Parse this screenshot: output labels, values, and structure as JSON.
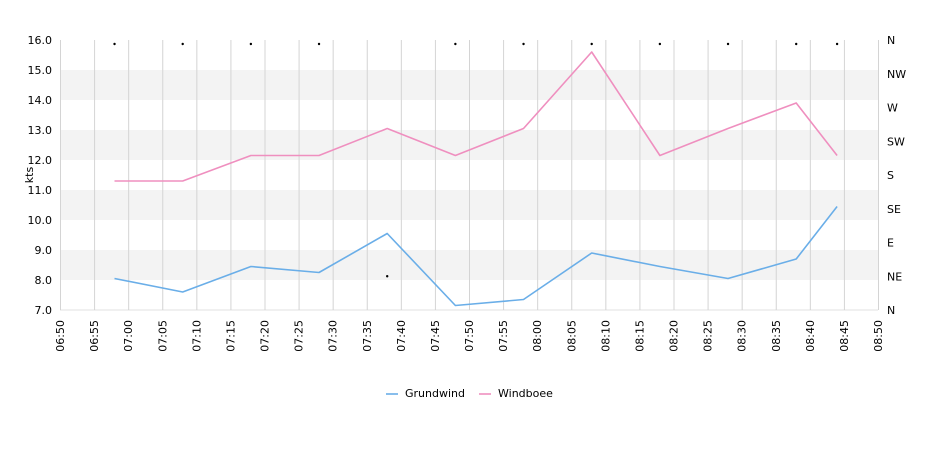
{
  "chart_data": {
    "type": "line",
    "ylabel": "kts",
    "ylim": [
      7.0,
      16.0
    ],
    "y_ticks": [
      "7.0",
      "8.0",
      "9.0",
      "10.0",
      "11.0",
      "12.0",
      "13.0",
      "14.0",
      "15.0",
      "16.0"
    ],
    "x_range": [
      "06:50",
      "08:50"
    ],
    "x_ticks": [
      "06:50",
      "06:55",
      "07:00",
      "07:05",
      "07:10",
      "07:15",
      "07:20",
      "07:25",
      "07:30",
      "07:35",
      "07:40",
      "07:45",
      "07:50",
      "07:55",
      "08:00",
      "08:05",
      "08:10",
      "08:15",
      "08:20",
      "08:25",
      "08:30",
      "08:35",
      "08:40",
      "08:45",
      "08:50"
    ],
    "direction_ticks": [
      "N",
      "NE",
      "E",
      "SE",
      "S",
      "SW",
      "W",
      "NW",
      "N"
    ],
    "grid": true,
    "legend_position": "bottom",
    "series": [
      {
        "name": "Grundwind",
        "color": "#6aaee8",
        "points": [
          [
            "06:58",
            8.05
          ],
          [
            "07:08",
            7.6
          ],
          [
            "07:18",
            8.45
          ],
          [
            "07:28",
            8.25
          ],
          [
            "07:38",
            9.55
          ],
          [
            "07:48",
            7.15
          ],
          [
            "07:58",
            7.35
          ],
          [
            "08:08",
            8.9
          ],
          [
            "08:18",
            8.45
          ],
          [
            "08:28",
            8.05
          ],
          [
            "08:38",
            8.7
          ],
          [
            "08:44",
            10.45
          ]
        ]
      },
      {
        "name": "Windboee",
        "color": "#ef8fbf",
        "points": [
          [
            "06:58",
            11.3
          ],
          [
            "07:08",
            11.3
          ],
          [
            "07:18",
            12.15
          ],
          [
            "07:28",
            12.15
          ],
          [
            "07:38",
            13.05
          ],
          [
            "07:48",
            12.15
          ],
          [
            "07:58",
            13.05
          ],
          [
            "08:08",
            15.6
          ],
          [
            "08:18",
            12.15
          ],
          [
            "08:28",
            13.05
          ],
          [
            "08:38",
            13.9
          ],
          [
            "08:44",
            12.15
          ]
        ]
      }
    ],
    "direction_points": [
      [
        "06:58",
        "N"
      ],
      [
        "07:08",
        "N"
      ],
      [
        "07:18",
        "N"
      ],
      [
        "07:28",
        "N"
      ],
      [
        "07:38",
        "NE"
      ],
      [
        "07:48",
        "N"
      ],
      [
        "07:58",
        "N"
      ],
      [
        "08:08",
        "N"
      ],
      [
        "08:18",
        "N"
      ],
      [
        "08:28",
        "N"
      ],
      [
        "08:38",
        "N"
      ],
      [
        "08:44",
        "N"
      ]
    ]
  }
}
